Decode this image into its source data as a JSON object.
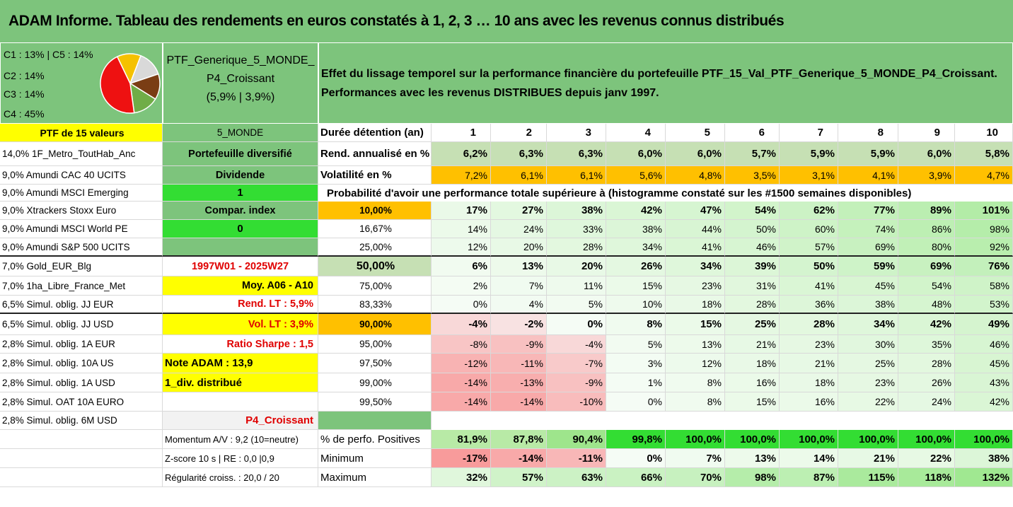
{
  "title": "ADAM Informe. Tableau des rendements en euros constatés à 1, 2, 3 … 10 ans avec les revenus connus distribués",
  "pie": {
    "lines": [
      "C1 : 13% | C5 : 14%",
      "C2 : 14%",
      "C3 : 14%",
      "C4 : 45%"
    ],
    "slices": [
      {
        "value": 13,
        "color": "#f5c100"
      },
      {
        "value": 14,
        "color": "#d9d9d9"
      },
      {
        "value": 14,
        "color": "#7a3d14"
      },
      {
        "value": 14,
        "color": "#70ad47"
      },
      {
        "value": 45,
        "color": "#ee1111"
      }
    ]
  },
  "ptf": {
    "line1": "PTF_Generique_5_MONDE_",
    "line2": "P4_Croissant",
    "line3": "(5,9% | 3,9%)"
  },
  "desc": {
    "line1": "Effet du lissage temporel sur la performance financière du portefeuille PTF_15_Val_PTF_Generique_5_MONDE_P4_Croissant.",
    "line2": "Performances avec les revenus DISTRIBUES depuis janv 1997."
  },
  "header": {
    "col0": "PTF de 15 valeurs",
    "col1": "5_MONDE",
    "col2": "Durée détention (an)",
    "years": [
      "1",
      "2",
      "3",
      "4",
      "5",
      "6",
      "7",
      "8",
      "9",
      "10"
    ]
  },
  "assets": [
    "14,0% 1F_Metro_ToutHab_Anc",
    "9,0% Amundi CAC 40 UCITS",
    "9,0% Amundi MSCI Emerging",
    "9,0% Xtrackers Stoxx Euro",
    "9,0% Amundi MSCI World PE",
    "9,0% Amundi S&P 500 UCITS",
    "7,0% Gold_EUR_Blg",
    "7,0% 1ha_Libre_France_Met",
    "6,5% Simul. oblig. JJ EUR",
    "6,5% Simul. oblig. JJ USD",
    "2,8% Simul. oblig. 1A EUR",
    "2,8% Simul. oblig. 10A US",
    "2,8% Simul. oblig. 1A USD",
    "2,8% Simul. OAT 10A EURO",
    "2,8% Simul. oblig. 6M USD"
  ],
  "col1": [
    "Portefeuille diversifié",
    "Dividende",
    "1",
    "Compar. index",
    "0",
    "",
    "1997W01 - 2025W27",
    "Moy. A06 - A10",
    "Rend. LT : 5,9%",
    "Vol. LT : 3,9%",
    "Ratio Sharpe : 1,5",
    "Note ADAM : 13,9",
    "1_div. distribué",
    "",
    "P4_Croissant"
  ],
  "rend": {
    "label": "Rend. annualisé en %",
    "values": [
      "6,2%",
      "6,3%",
      "6,3%",
      "6,0%",
      "6,0%",
      "5,7%",
      "5,9%",
      "5,9%",
      "6,0%",
      "5,8%"
    ]
  },
  "vol": {
    "label": "Volatilité en %",
    "values": [
      "7,2%",
      "6,1%",
      "6,1%",
      "5,6%",
      "4,8%",
      "3,5%",
      "3,1%",
      "4,1%",
      "3,9%",
      "4,7%"
    ]
  },
  "prob_title": "Probabilité d'avoir une performance totale supérieure à (histogramme constaté sur les #1500 semaines disponibles)",
  "prob_rows": [
    {
      "label": "10,00%",
      "values": [
        "17%",
        "27%",
        "38%",
        "42%",
        "47%",
        "54%",
        "62%",
        "77%",
        "89%",
        "101%"
      ]
    },
    {
      "label": "16,67%",
      "values": [
        "14%",
        "24%",
        "33%",
        "38%",
        "44%",
        "50%",
        "60%",
        "74%",
        "86%",
        "98%"
      ]
    },
    {
      "label": "25,00%",
      "values": [
        "12%",
        "20%",
        "28%",
        "34%",
        "41%",
        "46%",
        "57%",
        "69%",
        "80%",
        "92%"
      ]
    },
    {
      "label": "50,00%",
      "values": [
        "6%",
        "13%",
        "20%",
        "26%",
        "34%",
        "39%",
        "50%",
        "59%",
        "69%",
        "76%"
      ]
    },
    {
      "label": "75,00%",
      "values": [
        "2%",
        "7%",
        "11%",
        "15%",
        "23%",
        "31%",
        "41%",
        "45%",
        "54%",
        "58%"
      ]
    },
    {
      "label": "83,33%",
      "values": [
        "0%",
        "4%",
        "5%",
        "10%",
        "18%",
        "28%",
        "36%",
        "38%",
        "48%",
        "53%"
      ]
    },
    {
      "label": "90,00%",
      "values": [
        "-4%",
        "-2%",
        "0%",
        "8%",
        "15%",
        "25%",
        "28%",
        "34%",
        "42%",
        "49%"
      ]
    },
    {
      "label": "95,00%",
      "values": [
        "-8%",
        "-9%",
        "-4%",
        "5%",
        "13%",
        "21%",
        "23%",
        "30%",
        "35%",
        "46%"
      ]
    },
    {
      "label": "97,50%",
      "values": [
        "-12%",
        "-11%",
        "-7%",
        "3%",
        "12%",
        "18%",
        "21%",
        "25%",
        "28%",
        "45%"
      ]
    },
    {
      "label": "99,00%",
      "values": [
        "-14%",
        "-13%",
        "-9%",
        "1%",
        "8%",
        "16%",
        "18%",
        "23%",
        "26%",
        "43%"
      ]
    },
    {
      "label": "99,50%",
      "values": [
        "-14%",
        "-14%",
        "-10%",
        "0%",
        "8%",
        "15%",
        "16%",
        "22%",
        "24%",
        "42%"
      ]
    }
  ],
  "bottom": [
    {
      "c1": "Momentum A/V : 9,2 (10=neutre)",
      "label": "% de perfo. Positives",
      "values": [
        "81,9%",
        "87,8%",
        "90,4%",
        "99,8%",
        "100,0%",
        "100,0%",
        "100,0%",
        "100,0%",
        "100,0%",
        "100,0%"
      ]
    },
    {
      "c1": "Z-score 10 s | RE : 0,0 |0,9",
      "label": "Minimum",
      "values": [
        "-17%",
        "-14%",
        "-11%",
        "0%",
        "7%",
        "13%",
        "14%",
        "21%",
        "22%",
        "38%"
      ]
    },
    {
      "c1": "Régularité croiss. : 20,0 / 20",
      "label": "Maximum",
      "values": [
        "32%",
        "57%",
        "63%",
        "66%",
        "70%",
        "98%",
        "87%",
        "115%",
        "118%",
        "132%"
      ]
    }
  ],
  "colors": {
    "green": "#7dc47c",
    "yellow": "#ffff00",
    "orange": "#ffc000",
    "bright_green": "#33dd33",
    "light_green": "#c6e0b4",
    "red_text": "#e00000"
  }
}
